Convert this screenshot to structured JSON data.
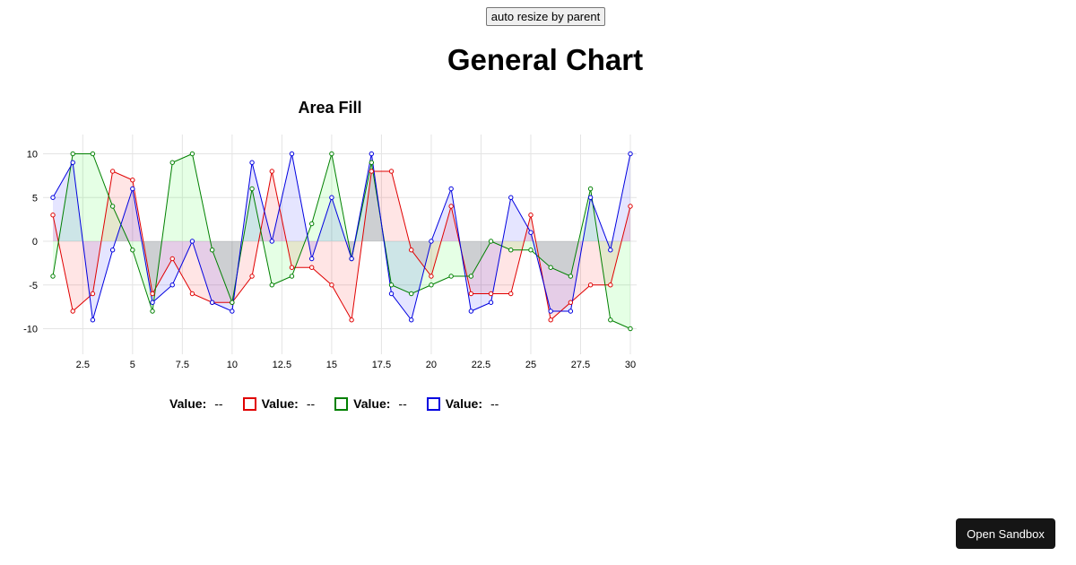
{
  "toolbar": {
    "resize_label": "auto resize by parent"
  },
  "page": {
    "title": "General Chart"
  },
  "sandbox": {
    "label": "Open Sandbox"
  },
  "legend": {
    "items": [
      {
        "label": "Value:",
        "value": "--",
        "color": ""
      },
      {
        "label": "Value:",
        "value": "--",
        "color": "#e00000"
      },
      {
        "label": "Value:",
        "value": "--",
        "color": "#008000"
      },
      {
        "label": "Value:",
        "value": "--",
        "color": "#0000e0"
      }
    ]
  },
  "chart_data": {
    "type": "area",
    "title": "Area Fill",
    "xlabel": "",
    "ylabel": "",
    "xlim": [
      1,
      30
    ],
    "ylim": [
      -13,
      12
    ],
    "x_ticks": [
      2.5,
      5,
      7.5,
      10,
      12.5,
      15,
      17.5,
      20,
      22.5,
      25,
      27.5,
      30
    ],
    "y_ticks": [
      10,
      5,
      0,
      -5,
      -10
    ],
    "grid": true,
    "legend_position": "bottom",
    "x": [
      1,
      2,
      3,
      4,
      5,
      6,
      7,
      8,
      9,
      10,
      11,
      12,
      13,
      14,
      15,
      16,
      17,
      18,
      19,
      20,
      21,
      22,
      23,
      24,
      25,
      26,
      27,
      28,
      29,
      30
    ],
    "series": [
      {
        "color": "#e00000",
        "fill": "rgba(255,0,0,0.1)",
        "values": [
          3,
          -8,
          -6,
          8,
          7,
          -6,
          -2,
          -6,
          -7,
          -7,
          -4,
          8,
          -3,
          -3,
          -5,
          -9,
          8,
          8,
          -1,
          -4,
          4,
          -6,
          -6,
          -6,
          3,
          -9,
          -7,
          -5,
          -5,
          4
        ]
      },
      {
        "color": "#008000",
        "fill": "rgba(0,255,0,0.1)",
        "values": [
          -4,
          10,
          10,
          4,
          -1,
          -8,
          9,
          10,
          -1,
          -7,
          6,
          -5,
          -4,
          2,
          10,
          -2,
          9,
          -5,
          -6,
          -5,
          -4,
          -4,
          0,
          -1,
          -1,
          -3,
          -4,
          6,
          -9,
          -10
        ]
      },
      {
        "color": "#0000e0",
        "fill": "rgba(0,0,255,0.1)",
        "values": [
          5,
          9,
          -9,
          -1,
          6,
          -7,
          -5,
          0,
          -7,
          -8,
          9,
          0,
          10,
          -2,
          5,
          -2,
          10,
          -6,
          -9,
          0,
          6,
          -8,
          -7,
          5,
          1,
          -8,
          -8,
          5,
          -1,
          10
        ]
      }
    ]
  }
}
